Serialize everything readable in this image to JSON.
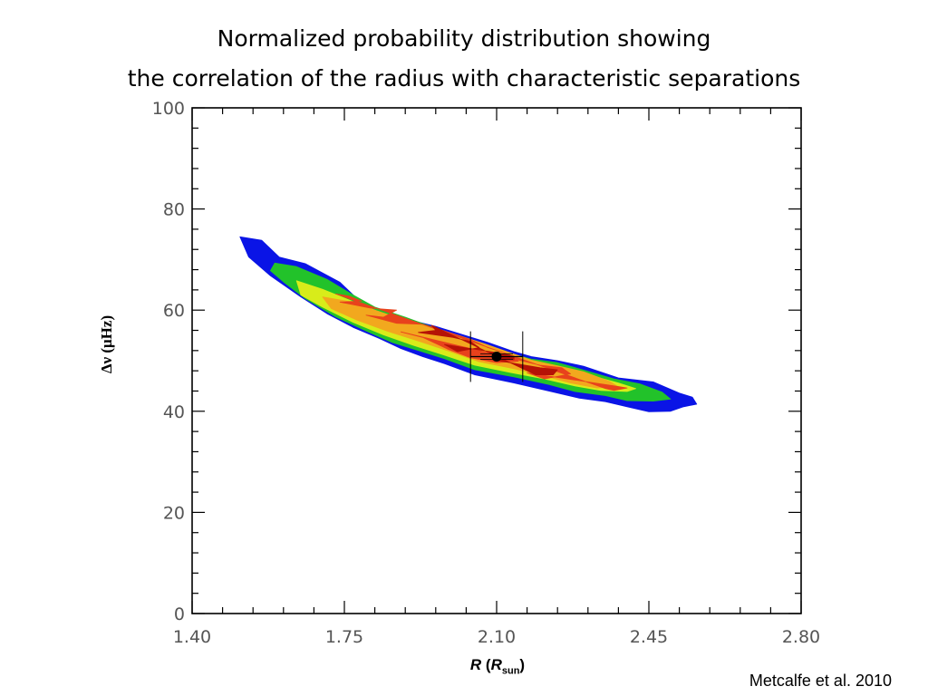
{
  "title": {
    "line1": "Normalized probability distribution showing",
    "line2": "the correlation of the radius with characteristic separations"
  },
  "citation": "Metcalfe et al. 2010",
  "chart_data": {
    "type": "contour",
    "xlabel": {
      "symbol": "R",
      "open": " (",
      "unit_symbol": "R",
      "unit_sub": "sun",
      "close": ")"
    },
    "ylabel": "Δν (μHz)",
    "xlim": [
      1.4,
      2.8
    ],
    "ylim": [
      0,
      100
    ],
    "xticks": [
      "1.40",
      "1.75",
      "2.10",
      "2.45",
      "2.80"
    ],
    "yticks": [
      "0",
      "20",
      "40",
      "60",
      "80",
      "100"
    ],
    "grid": false,
    "levels": [
      {
        "level": 1,
        "color": "#0a14e6",
        "polygon": [
          [
            1.51,
            74.5
          ],
          [
            1.56,
            73.8
          ],
          [
            1.6,
            70.5
          ],
          [
            1.66,
            69.2
          ],
          [
            1.74,
            65.5
          ],
          [
            1.78,
            62.2
          ],
          [
            1.82,
            59.8
          ],
          [
            1.88,
            58.5
          ],
          [
            1.96,
            56.8
          ],
          [
            2.02,
            55.2
          ],
          [
            2.08,
            53.6
          ],
          [
            2.14,
            51.8
          ],
          [
            2.18,
            50.8
          ],
          [
            2.24,
            50.0
          ],
          [
            2.3,
            48.9
          ],
          [
            2.38,
            46.6
          ],
          [
            2.46,
            45.8
          ],
          [
            2.52,
            43.6
          ],
          [
            2.55,
            42.8
          ],
          [
            2.56,
            41.4
          ],
          [
            2.53,
            40.9
          ],
          [
            2.5,
            40.0
          ],
          [
            2.45,
            39.9
          ],
          [
            2.4,
            40.9
          ],
          [
            2.35,
            41.9
          ],
          [
            2.29,
            42.6
          ],
          [
            2.22,
            44.0
          ],
          [
            2.14,
            45.6
          ],
          [
            2.05,
            47.2
          ],
          [
            1.98,
            49.4
          ],
          [
            1.93,
            50.8
          ],
          [
            1.88,
            52.4
          ],
          [
            1.83,
            54.4
          ],
          [
            1.77,
            56.6
          ],
          [
            1.71,
            59.3
          ],
          [
            1.65,
            62.6
          ],
          [
            1.58,
            66.8
          ],
          [
            1.53,
            70.5
          ]
        ]
      },
      {
        "level": 2,
        "color": "#22c22a",
        "polygon": [
          [
            1.59,
            69.3
          ],
          [
            1.64,
            68.6
          ],
          [
            1.71,
            66.1
          ],
          [
            1.77,
            63.0
          ],
          [
            1.82,
            60.6
          ],
          [
            1.89,
            58.6
          ],
          [
            1.96,
            56.4
          ],
          [
            2.02,
            54.6
          ],
          [
            2.07,
            53.2
          ],
          [
            2.12,
            51.7
          ],
          [
            2.18,
            50.3
          ],
          [
            2.24,
            49.6
          ],
          [
            2.31,
            47.9
          ],
          [
            2.37,
            46.4
          ],
          [
            2.43,
            45.4
          ],
          [
            2.48,
            43.8
          ],
          [
            2.5,
            42.4
          ],
          [
            2.46,
            42.0
          ],
          [
            2.4,
            42.1
          ],
          [
            2.35,
            43.1
          ],
          [
            2.28,
            43.9
          ],
          [
            2.22,
            45.3
          ],
          [
            2.14,
            46.8
          ],
          [
            2.05,
            48.2
          ],
          [
            1.98,
            50.4
          ],
          [
            1.92,
            52.0
          ],
          [
            1.86,
            53.6
          ],
          [
            1.8,
            55.9
          ],
          [
            1.73,
            58.7
          ],
          [
            1.66,
            62.3
          ],
          [
            1.61,
            65.6
          ],
          [
            1.58,
            67.8
          ]
        ]
      },
      {
        "level": 3,
        "color": "#d8ec1a",
        "polygon": [
          [
            1.64,
            65.8
          ],
          [
            1.7,
            64.1
          ],
          [
            1.77,
            61.7
          ],
          [
            1.84,
            59.3
          ],
          [
            1.9,
            57.6
          ],
          [
            1.97,
            55.7
          ],
          [
            2.03,
            54.0
          ],
          [
            2.08,
            52.4
          ],
          [
            2.14,
            51.0
          ],
          [
            2.2,
            49.5
          ],
          [
            2.26,
            48.5
          ],
          [
            2.32,
            47.0
          ],
          [
            2.38,
            45.6
          ],
          [
            2.42,
            44.5
          ],
          [
            2.4,
            43.9
          ],
          [
            2.34,
            44.1
          ],
          [
            2.28,
            45.0
          ],
          [
            2.21,
            46.4
          ],
          [
            2.13,
            47.7
          ],
          [
            2.05,
            49.1
          ],
          [
            1.98,
            51.1
          ],
          [
            1.91,
            53.0
          ],
          [
            1.84,
            55.1
          ],
          [
            1.77,
            57.6
          ],
          [
            1.7,
            60.6
          ],
          [
            1.65,
            63.0
          ]
        ]
      },
      {
        "level": 4,
        "color": "#f2a81e",
        "polygon": [
          [
            1.7,
            62.6
          ],
          [
            1.76,
            61.7
          ],
          [
            1.82,
            60.0
          ],
          [
            1.89,
            58.0
          ],
          [
            1.96,
            56.4
          ],
          [
            2.02,
            54.8
          ],
          [
            2.07,
            53.4
          ],
          [
            2.12,
            51.9
          ],
          [
            2.18,
            50.1
          ],
          [
            2.24,
            49.0
          ],
          [
            2.3,
            47.8
          ],
          [
            2.36,
            45.9
          ],
          [
            2.38,
            44.8
          ],
          [
            2.33,
            44.6
          ],
          [
            2.27,
            45.6
          ],
          [
            2.21,
            47.0
          ],
          [
            2.14,
            48.4
          ],
          [
            2.06,
            49.8
          ],
          [
            1.99,
            51.9
          ],
          [
            1.92,
            53.9
          ],
          [
            1.85,
            55.8
          ],
          [
            1.78,
            58.0
          ],
          [
            1.72,
            60.3
          ]
        ]
      },
      {
        "level": 5,
        "color": "#e8421c",
        "polygon": [
          [
            1.73,
            63.2
          ],
          [
            1.76,
            62.8
          ],
          [
            1.79,
            61.8
          ],
          [
            1.74,
            61.6
          ],
          [
            1.81,
            60.4
          ],
          [
            1.87,
            60.0
          ],
          [
            1.84,
            58.6
          ],
          [
            1.8,
            59.0
          ],
          [
            1.87,
            57.4
          ],
          [
            1.93,
            57.2
          ],
          [
            1.98,
            55.9
          ],
          [
            2.04,
            54.2
          ],
          [
            2.08,
            52.6
          ],
          [
            2.13,
            51.2
          ],
          [
            2.15,
            49.9
          ],
          [
            2.1,
            49.6
          ],
          [
            2.04,
            50.6
          ],
          [
            1.99,
            52.2
          ],
          [
            1.93,
            54.6
          ],
          [
            1.88,
            55.7
          ],
          [
            2.2,
            49.1
          ],
          [
            2.25,
            48.6
          ],
          [
            2.27,
            47.4
          ],
          [
            2.21,
            46.4
          ],
          [
            2.17,
            47.6
          ],
          [
            2.38,
            44.9
          ],
          [
            2.4,
            44.6
          ],
          [
            2.37,
            44.1
          ],
          [
            2.35,
            44.5
          ]
        ]
      },
      {
        "level": 6,
        "color": "#b51206",
        "polygon": [
          [
            1.95,
            57.0
          ],
          [
            1.96,
            56.0
          ],
          [
            1.92,
            55.6
          ],
          [
            2.0,
            54.6
          ],
          [
            2.04,
            53.8
          ],
          [
            2.06,
            52.6
          ],
          [
            2.01,
            51.8
          ],
          [
            1.98,
            53.2
          ],
          [
            2.1,
            51.6
          ],
          [
            2.14,
            50.9
          ],
          [
            2.14,
            50.2
          ],
          [
            2.09,
            50.2
          ],
          [
            2.2,
            48.6
          ],
          [
            2.24,
            48.2
          ],
          [
            2.23,
            47.2
          ],
          [
            2.19,
            47.2
          ]
        ]
      }
    ],
    "best_fit": {
      "x": 2.1,
      "y": 50.8,
      "x_err": [
        0.06,
        0.06
      ],
      "y_err": [
        5.0,
        5.0
      ]
    }
  }
}
